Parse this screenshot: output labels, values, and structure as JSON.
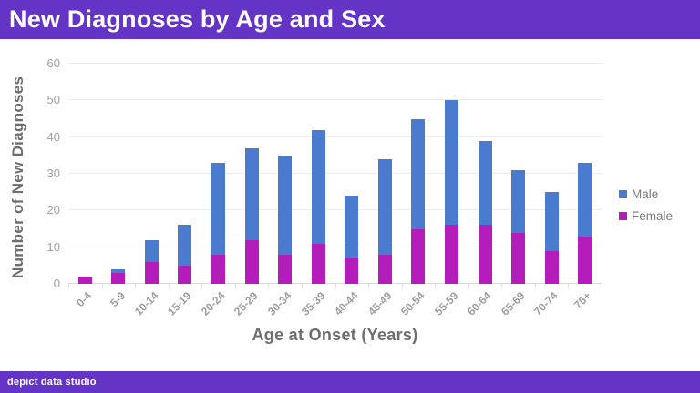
{
  "header": {
    "title": "New Diagnoses by Age and Sex",
    "bg": "#6434C7"
  },
  "footer": {
    "brand": "depict data studio",
    "bg": "#6434C7"
  },
  "legend": {
    "male_label": "Male",
    "female_label": "Female"
  },
  "chart_data": {
    "type": "bar",
    "stacked": true,
    "title": "New Diagnoses by Age and Sex",
    "xlabel": "Age at Onset (Years)",
    "ylabel": "Number of New Diagnoses",
    "categories": [
      "0-4",
      "5-9",
      "10-14",
      "15-19",
      "20-24",
      "25-29",
      "30-34",
      "35-39",
      "40-44",
      "45-49",
      "50-54",
      "55-59",
      "60-64",
      "65-69",
      "70-74",
      "75+"
    ],
    "series": [
      {
        "name": "Female",
        "color": "#B41DB9",
        "values": [
          2,
          3,
          6,
          5,
          8,
          12,
          8,
          11,
          7,
          8,
          15,
          16,
          16,
          14,
          9,
          13
        ]
      },
      {
        "name": "Male",
        "color": "#4A7BCE",
        "values": [
          0,
          1,
          6,
          11,
          25,
          25,
          27,
          31,
          17,
          26,
          30,
          34,
          23,
          17,
          16,
          20
        ]
      }
    ],
    "totals": [
      2,
      4,
      12,
      16,
      33,
      37,
      35,
      42,
      24,
      34,
      45,
      50,
      39,
      31,
      25,
      33
    ],
    "ylim": [
      0,
      60
    ],
    "yticks": [
      0,
      10,
      20,
      30,
      40,
      50,
      60
    ],
    "grid": true,
    "legend_position": "right",
    "legend_order": [
      "Male",
      "Female"
    ]
  }
}
